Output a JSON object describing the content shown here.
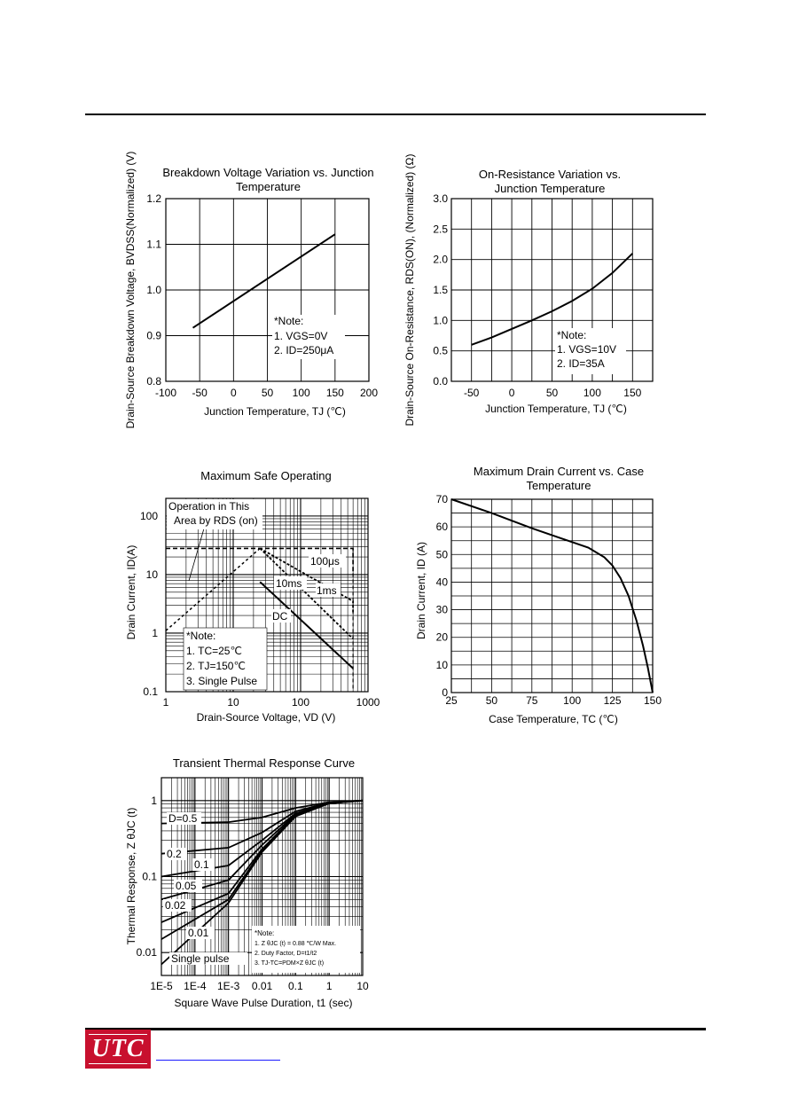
{
  "footer": {
    "logo_text": "UTC"
  },
  "chart_data": [
    {
      "type": "line",
      "title": "Breakdown Voltage Variation vs. Junction Temperature",
      "xlabel": "Junction Temperature, TJ (℃)",
      "ylabel": "Drain-Source Breakdown Voltage, BVDSS(Normalized) (V)",
      "xlim": [
        -100,
        200
      ],
      "ylim": [
        0.8,
        1.2
      ],
      "xticks": [
        "-100",
        "-50",
        "0",
        "50",
        "100",
        "150",
        "200"
      ],
      "yticks": [
        "0.8",
        "0.9",
        "1.0",
        "1.1",
        "1.2"
      ],
      "grid": true,
      "series": [
        {
          "x": [
            -60,
            150
          ],
          "y": [
            0.917,
            1.122
          ]
        }
      ],
      "annotations": [
        "*Note:",
        "1. VGS=0V",
        "2. ID=250μA"
      ]
    },
    {
      "type": "line",
      "title": "On-Resistance Variation vs. Junction Temperature",
      "xlabel": "Junction Temperature, TJ (℃)",
      "ylabel": "Drain-Source On-Resistance, RDS(ON), (Normalized) (Ω)",
      "xlim": [
        -75,
        175
      ],
      "ylim": [
        0,
        3.0
      ],
      "xticks": [
        "-50",
        "0",
        "50",
        "100",
        "150"
      ],
      "yticks": [
        "0.0",
        "0.5",
        "1.0",
        "1.5",
        "2.0",
        "2.5",
        "3.0"
      ],
      "grid": true,
      "series": [
        {
          "x": [
            -50,
            -25,
            0,
            25,
            50,
            75,
            100,
            125,
            150
          ],
          "y": [
            0.6,
            0.72,
            0.86,
            1.0,
            1.15,
            1.32,
            1.52,
            1.78,
            2.1
          ]
        }
      ],
      "annotations": [
        "*Note:",
        "1. VGS=10V",
        "2. ID=35A"
      ]
    },
    {
      "type": "line",
      "title": "Maximum Safe Operating",
      "xlabel": "Drain-Source Voltage, VD (V)",
      "ylabel": "Drain Current, ID(A)",
      "xscale": "log",
      "yscale": "log",
      "xlim": [
        1,
        1000
      ],
      "ylim": [
        0.1,
        200
      ],
      "xticks": [
        "1",
        "10",
        "100",
        "1000"
      ],
      "yticks": [
        "0.1",
        "1",
        "10",
        "100"
      ],
      "grid": true,
      "series": [
        {
          "name": "RDS(on) limit",
          "x": [
            1,
            25
          ],
          "y": [
            1.1,
            28
          ]
        },
        {
          "name": "100μs",
          "x": [
            1,
            600,
            600
          ],
          "y": [
            28,
            28,
            10
          ]
        },
        {
          "name": "1ms",
          "x": [
            25,
            600,
            600
          ],
          "y": [
            28,
            3.5,
            2.2
          ]
        },
        {
          "name": "10ms",
          "x": [
            25,
            600
          ],
          "y": [
            28,
            0.8
          ]
        },
        {
          "name": "DC",
          "x": [
            25,
            600
          ],
          "y": [
            7.5,
            0.25
          ]
        }
      ],
      "labels": [
        "Operation in This",
        "Area by RDS (on)",
        "100μs",
        "10ms",
        "1ms",
        "DC"
      ],
      "annotations": [
        "*Note:",
        "1. TC=25℃",
        "2. TJ=150℃",
        "3. Single Pulse"
      ]
    },
    {
      "type": "line",
      "title": "Maximum Drain Current vs. Case Temperature",
      "xlabel": "Case Temperature, TC (℃)",
      "ylabel": "Drain Current, ID (A)",
      "xlim": [
        25,
        150
      ],
      "ylim": [
        0,
        70
      ],
      "xticks": [
        "25",
        "50",
        "75",
        "100",
        "125",
        "150"
      ],
      "yticks": [
        "0",
        "10",
        "20",
        "30",
        "40",
        "50",
        "60",
        "70"
      ],
      "grid": true,
      "series": [
        {
          "x": [
            25,
            50,
            75,
            100,
            110,
            120,
            125,
            130,
            135,
            140,
            144,
            147,
            149,
            150
          ],
          "y": [
            70,
            65,
            59.5,
            54.5,
            52.5,
            49,
            46,
            41.5,
            35,
            26,
            17,
            9,
            3,
            0
          ]
        }
      ]
    },
    {
      "type": "line",
      "title": "Transient  Thermal Response Curve",
      "xlabel": "Square Wave Pulse Duration, t1 (sec)",
      "ylabel": "Thermal Response, Z θJC (t)",
      "xscale": "log",
      "yscale": "log",
      "xlim": [
        1e-05,
        10
      ],
      "ylim": [
        0.005,
        2
      ],
      "xticks": [
        "1E-5",
        "1E-4",
        "1E-3",
        "0.01",
        "0.1",
        "1",
        "10"
      ],
      "yticks": [
        "0.01",
        "0.1",
        "1"
      ],
      "grid": true,
      "series": [
        {
          "name": "D=0.5",
          "x": [
            1e-05,
            0.001,
            0.01,
            0.1,
            1,
            10
          ],
          "y": [
            0.5,
            0.52,
            0.6,
            0.8,
            0.95,
            1.0
          ]
        },
        {
          "name": "0.2",
          "x": [
            1e-05,
            0.001,
            0.01,
            0.1,
            1,
            10
          ],
          "y": [
            0.2,
            0.24,
            0.38,
            0.72,
            0.94,
            1.0
          ]
        },
        {
          "name": "0.1",
          "x": [
            1e-05,
            0.001,
            0.01,
            0.1,
            1,
            10
          ],
          "y": [
            0.1,
            0.14,
            0.3,
            0.68,
            0.93,
            1.0
          ]
        },
        {
          "name": "0.05",
          "x": [
            1e-05,
            0.001,
            0.01,
            0.1,
            1,
            10
          ],
          "y": [
            0.05,
            0.09,
            0.26,
            0.66,
            0.93,
            1.0
          ]
        },
        {
          "name": "0.02",
          "x": [
            1e-05,
            0.001,
            0.01,
            0.1,
            1,
            10
          ],
          "y": [
            0.025,
            0.06,
            0.23,
            0.64,
            0.92,
            1.0
          ]
        },
        {
          "name": "0.01",
          "x": [
            1e-05,
            0.001,
            0.01,
            0.1,
            1,
            10
          ],
          "y": [
            0.015,
            0.05,
            0.22,
            0.63,
            0.92,
            1.0
          ]
        },
        {
          "name": "Single pulse",
          "x": [
            1e-05,
            0.001,
            0.01,
            0.1,
            1,
            10
          ],
          "y": [
            0.007,
            0.045,
            0.21,
            0.62,
            0.92,
            1.0
          ]
        }
      ],
      "annotations": [
        "*Note:",
        "1. Z θJC (t) = 0.88 ℃/W Max.",
        "2. Duty Factor, D=t1/t2",
        "3. TJ-TC=PDM×Z θJC (t)"
      ]
    }
  ]
}
